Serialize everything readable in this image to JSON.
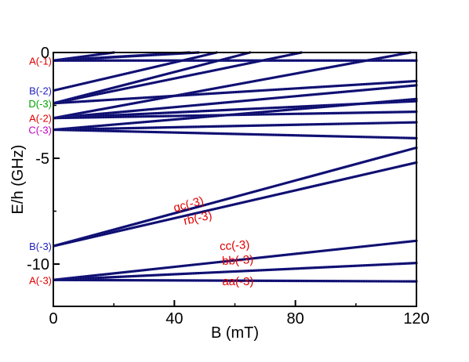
{
  "chart_data": {
    "type": "line",
    "xlabel": "B (mT)",
    "ylabel": "E/h (GHz)",
    "xlim": [
      0,
      120
    ],
    "ylim": [
      -12,
      0
    ],
    "grid": false,
    "x_ticks": [
      0,
      40,
      80,
      120
    ],
    "y_ticks": [
      0,
      -5,
      -10
    ],
    "x_tick_labels": [
      "0",
      "40",
      "80",
      "120"
    ],
    "y_tick_labels": [
      "0",
      "-5",
      "-10"
    ],
    "line_color": "#1a1a8c",
    "level_labels": [
      {
        "text": "A(-1)",
        "y": -0.38,
        "color": "#e00000"
      },
      {
        "text": "B(-2)",
        "y": -1.8,
        "color": "#2020c0"
      },
      {
        "text": "D(-3)",
        "y": -2.4,
        "color": "#00a000"
      },
      {
        "text": "A(-2)",
        "y": -3.1,
        "color": "#e00000"
      },
      {
        "text": "C(-3)",
        "y": -3.65,
        "color": "#c000c0"
      },
      {
        "text": "B(-3)",
        "y": -9.15,
        "color": "#2020c0"
      },
      {
        "text": "A(-3)",
        "y": -10.75,
        "color": "#e00000"
      }
    ],
    "annotations": [
      {
        "text": "qc(-3)",
        "x": 45,
        "y": -7.35,
        "color": "#e00000",
        "rotate": -15
      },
      {
        "text": "rb(-3)",
        "x": 48,
        "y": -8.0,
        "color": "#e00000",
        "rotate": -13
      },
      {
        "text": "cc(-3)",
        "x": 60,
        "y": -9.3,
        "color": "#e00000",
        "rotate": -4
      },
      {
        "text": "bb(-3)",
        "x": 61,
        "y": -10.0,
        "color": "#e00000",
        "rotate": -3
      },
      {
        "text": "aa(-3)",
        "x": 61,
        "y": -11.0,
        "color": "#e00000",
        "rotate": 0
      }
    ],
    "series": [
      {
        "x": [
          0,
          20
        ],
        "y": [
          -0.38,
          0
        ]
      },
      {
        "x": [
          0,
          45
        ],
        "y": [
          -0.38,
          0
        ]
      },
      {
        "x": [
          0,
          48
        ],
        "y": [
          -0.38,
          0
        ]
      },
      {
        "x": [
          0,
          120
        ],
        "y": [
          -0.38,
          -0.38
        ]
      },
      {
        "x": [
          0,
          54
        ],
        "y": [
          -1.8,
          0
        ]
      },
      {
        "x": [
          0,
          65
        ],
        "y": [
          -2.4,
          0
        ]
      },
      {
        "x": [
          0,
          82
        ],
        "y": [
          -2.4,
          0
        ]
      },
      {
        "x": [
          0,
          118
        ],
        "y": [
          -3.1,
          0
        ]
      },
      {
        "x": [
          0,
          120
        ],
        "y": [
          -2.4,
          -1.35
        ]
      },
      {
        "x": [
          0,
          120
        ],
        "y": [
          -3.1,
          -1.55
        ]
      },
      {
        "x": [
          0,
          120
        ],
        "y": [
          -3.1,
          -2.3
        ]
      },
      {
        "x": [
          0,
          120
        ],
        "y": [
          -3.1,
          -2.8
        ]
      },
      {
        "x": [
          0,
          120
        ],
        "y": [
          -3.65,
          -2.2
        ]
      },
      {
        "x": [
          0,
          120
        ],
        "y": [
          -3.65,
          -3.3
        ]
      },
      {
        "x": [
          0,
          120
        ],
        "y": [
          -3.65,
          -4.05
        ]
      },
      {
        "x": [
          0,
          120
        ],
        "y": [
          -9.15,
          -4.5
        ]
      },
      {
        "x": [
          0,
          120
        ],
        "y": [
          -9.15,
          -5.2
        ]
      },
      {
        "x": [
          0,
          120
        ],
        "y": [
          -10.75,
          -8.9
        ]
      },
      {
        "x": [
          0,
          120
        ],
        "y": [
          -10.75,
          -9.95
        ]
      },
      {
        "x": [
          0,
          120
        ],
        "y": [
          -10.75,
          -10.82
        ]
      }
    ]
  }
}
